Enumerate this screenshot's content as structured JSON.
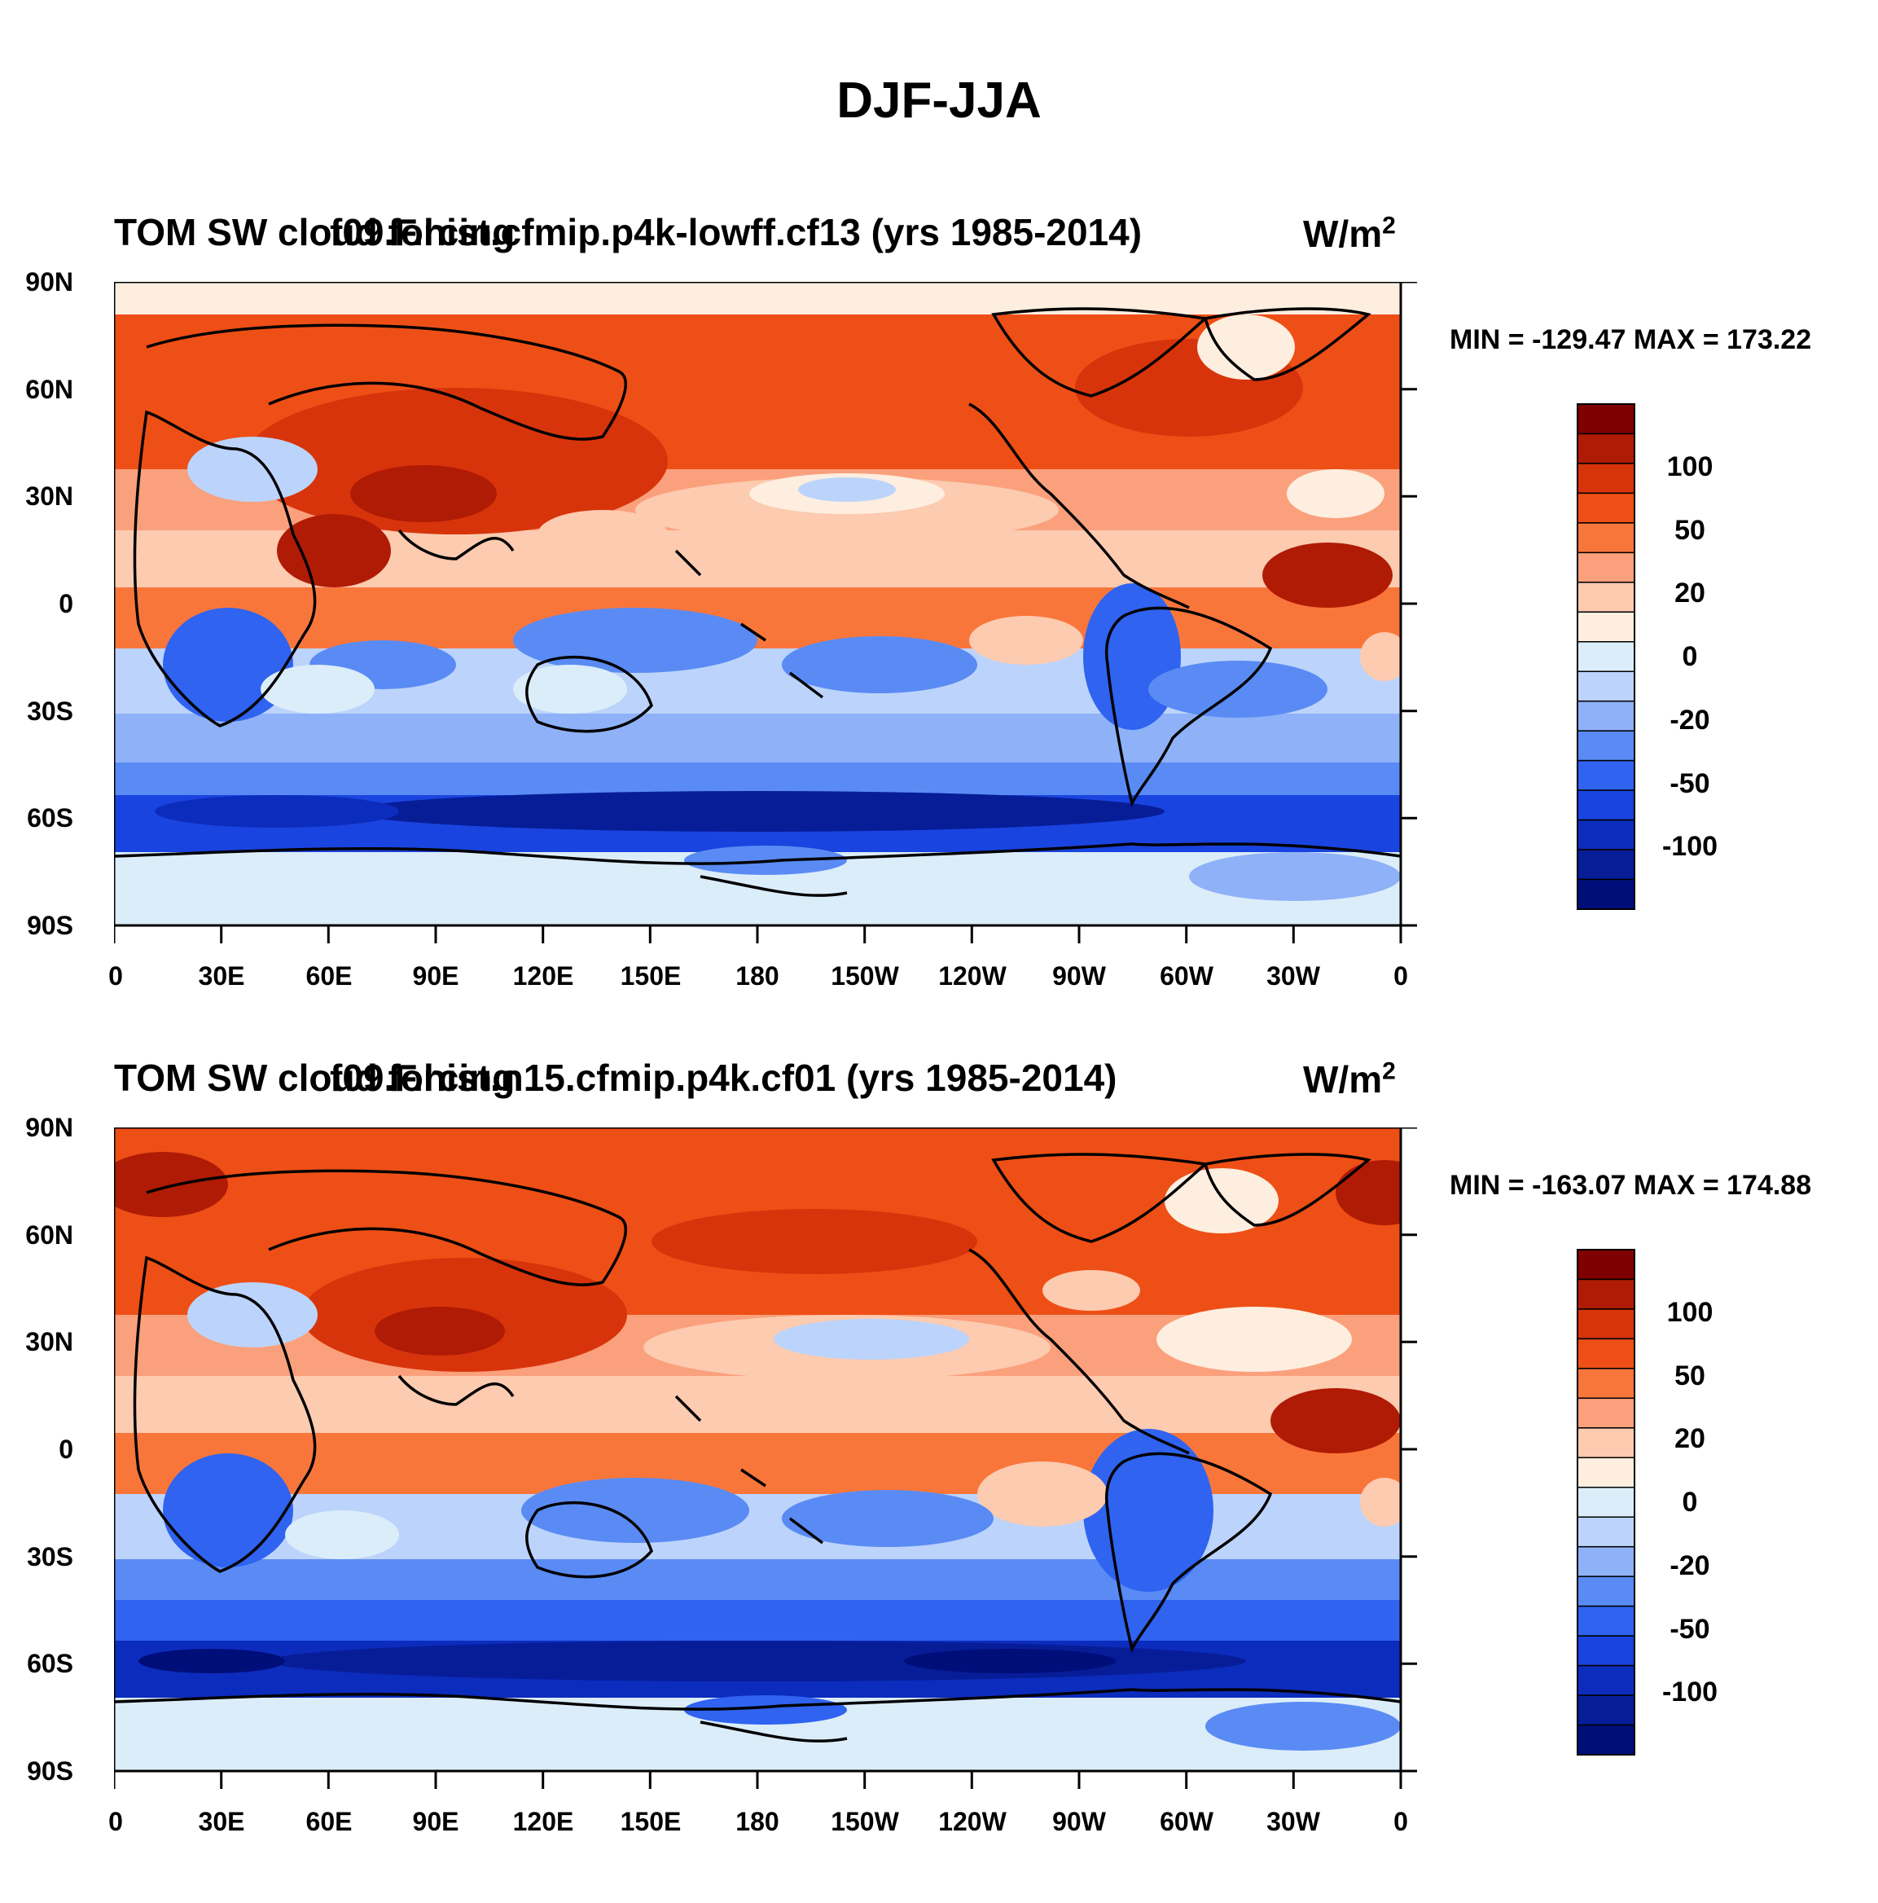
{
  "title": "DJF-JJA",
  "units_base": "W/m",
  "units_exp": "2",
  "lat_labels": [
    "90N",
    "60N",
    "30N",
    "0",
    "30S",
    "60S",
    "90S"
  ],
  "lon_labels": [
    "0",
    "30E",
    "60E",
    "90E",
    "120E",
    "150E",
    "180",
    "150W",
    "120W",
    "90W",
    "60W",
    "30W",
    "0"
  ],
  "colorbar": {
    "labels": [
      "100",
      "50",
      "20",
      "0",
      "-20",
      "-50",
      "-100"
    ],
    "colors": [
      "#7e0000",
      "#b01b05",
      "#d8340b",
      "#ee4f16",
      "#f9763b",
      "#fba07c",
      "#fccbb0",
      "#fdeee0",
      "#dcedfa",
      "#bcd4fb",
      "#8fb1f8",
      "#5a8bf4",
      "#2f63f0",
      "#1a44df",
      "#0c2cbd",
      "#071d98",
      "#000e7a"
    ]
  },
  "panels": [
    {
      "left_title": "TOM SW cloud forcing",
      "right_title": "f09.F.hist.cfmip.p4k-lowff.cf13 (yrs 1985-2014)",
      "min_max": "MIN = -129.47  MAX = 173.22"
    },
    {
      "left_title": "TOM SW cloud forcing",
      "right_title": "f09.F.hist.n15.cfmip.p4k.cf01 (yrs 1985-2014)",
      "min_max": "MIN = -163.07  MAX = 174.88"
    }
  ]
}
